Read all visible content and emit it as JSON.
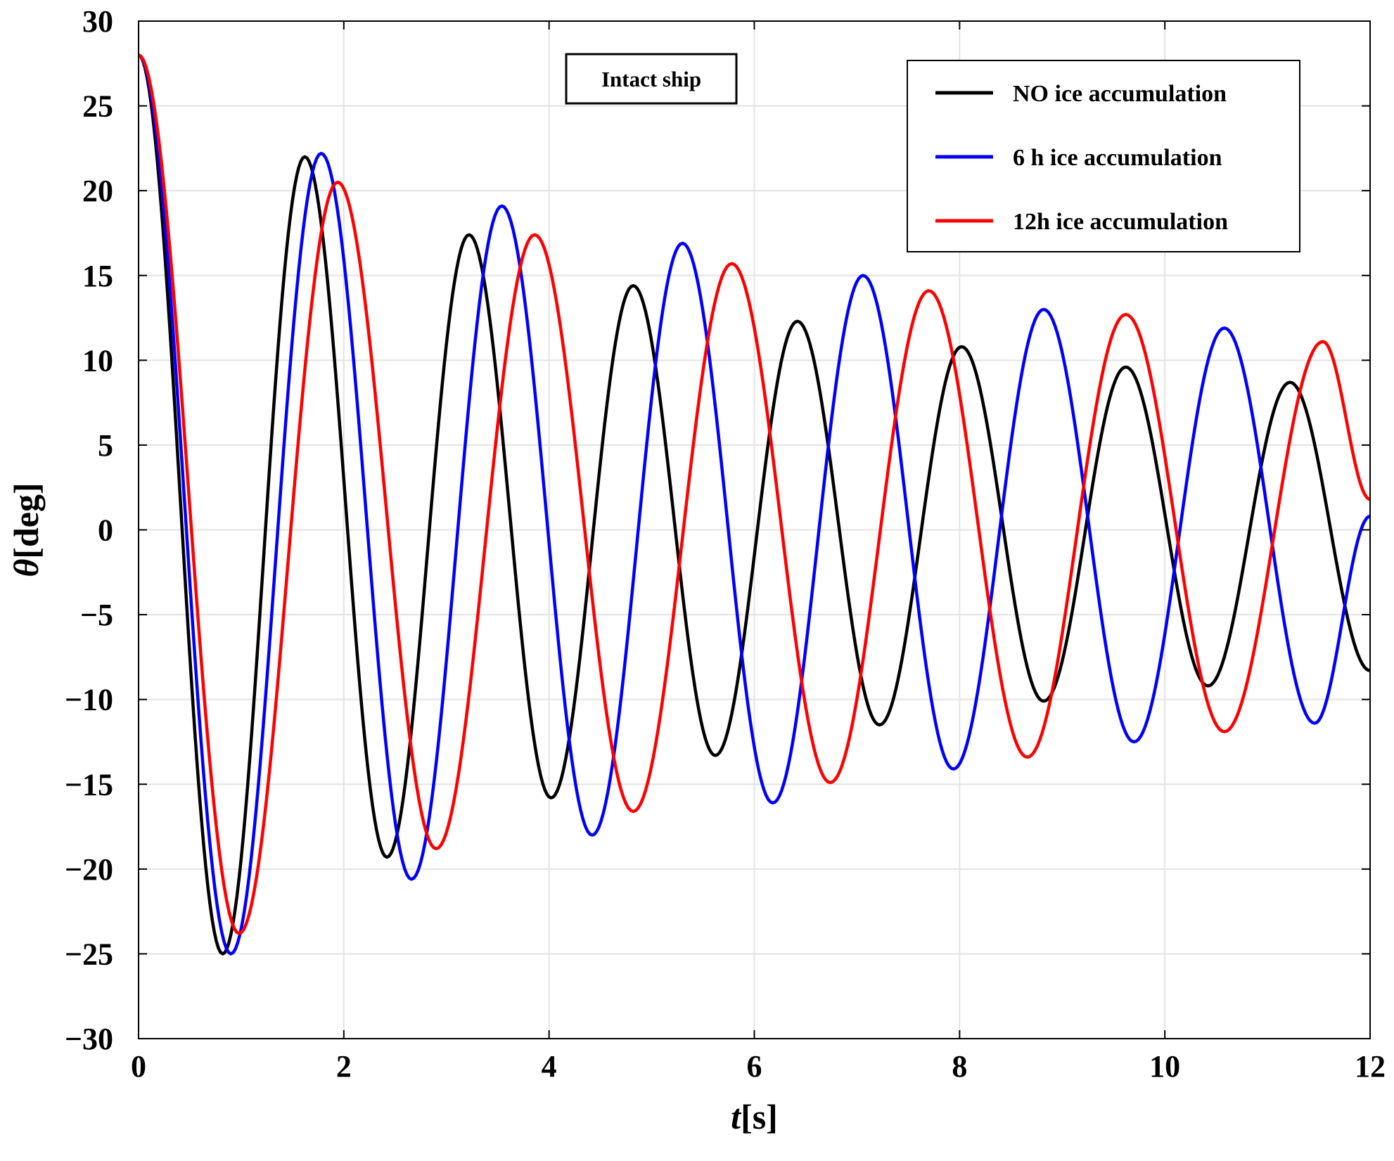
{
  "chart_data": {
    "type": "line",
    "title": "",
    "annotation": "Intact ship",
    "xlabel_var": "t",
    "xlabel_unit": "[s]",
    "ylabel_var": "θ",
    "ylabel_unit": "[deg]",
    "xlim": [
      0,
      12
    ],
    "ylim": [
      -30,
      30
    ],
    "xticks": [
      "0",
      "2",
      "4",
      "6",
      "8",
      "10",
      "12"
    ],
    "yticks": [
      "30",
      "25",
      "20",
      "15",
      "10",
      "5",
      "0",
      "−5",
      "−10",
      "−15",
      "−20",
      "−25",
      "−30"
    ],
    "grid": true,
    "legend_position": "top-right",
    "series": [
      {
        "name": "NO ice accumulation",
        "color": "#000000",
        "points": [
          [
            0,
            28
          ],
          [
            0.82,
            -25
          ],
          [
            1.62,
            22
          ],
          [
            2.42,
            -19.3
          ],
          [
            3.22,
            17.4
          ],
          [
            4.02,
            -15.8
          ],
          [
            4.82,
            14.4
          ],
          [
            5.62,
            -13.3
          ],
          [
            6.42,
            12.3
          ],
          [
            7.22,
            -11.5
          ],
          [
            8.02,
            10.8
          ],
          [
            8.82,
            -10.1
          ],
          [
            9.62,
            9.6
          ],
          [
            10.42,
            -9.2
          ],
          [
            11.22,
            8.7
          ],
          [
            12,
            -8.3
          ]
        ]
      },
      {
        "name": "6 h ice accumulation",
        "color": "#0000ff",
        "points": [
          [
            0,
            28
          ],
          [
            0.9,
            -25
          ],
          [
            1.78,
            22.2
          ],
          [
            2.66,
            -20.6
          ],
          [
            3.54,
            19.1
          ],
          [
            4.42,
            -18
          ],
          [
            5.3,
            16.9
          ],
          [
            6.18,
            -16.1
          ],
          [
            7.06,
            15
          ],
          [
            7.94,
            -14.1
          ],
          [
            8.82,
            13
          ],
          [
            9.7,
            -12.5
          ],
          [
            10.58,
            11.9
          ],
          [
            11.46,
            -11.4
          ],
          [
            12,
            0.8
          ]
        ]
      },
      {
        "name": "12h ice accumulation",
        "color": "#ff0000",
        "points": [
          [
            0,
            28
          ],
          [
            0.98,
            -23.8
          ],
          [
            1.94,
            20.5
          ],
          [
            2.9,
            -18.8
          ],
          [
            3.86,
            17.4
          ],
          [
            4.82,
            -16.6
          ],
          [
            5.78,
            15.7
          ],
          [
            6.74,
            -14.9
          ],
          [
            7.7,
            14.1
          ],
          [
            8.66,
            -13.4
          ],
          [
            9.62,
            12.7
          ],
          [
            10.58,
            -11.9
          ],
          [
            11.54,
            11.1
          ],
          [
            12,
            1.8
          ]
        ]
      }
    ]
  }
}
